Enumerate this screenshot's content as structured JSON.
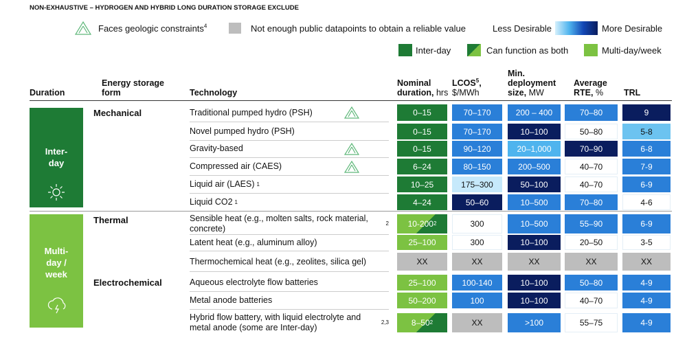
{
  "header": {
    "title": "NON-EXHAUSTIVE – HYDROGEN AND HYBRID LONG DURATION STORAGE EXCLUDE"
  },
  "legend": {
    "geologic": "Faces geologic constraints",
    "geologic_sup": "4",
    "gray": "Not enough public datapoints to obtain a reliable value",
    "less": "Less Desirable",
    "more": "More Desirable",
    "interday": "Inter-day",
    "both": "Can function as both",
    "multiday": "Multi-day/week"
  },
  "columns": [
    {
      "label": "Duration"
    },
    {
      "label": "Energy storage form"
    },
    {
      "label": "Technology"
    },
    {
      "label": "Nominal duration,",
      "unit": "hrs"
    },
    {
      "label": "LCOS",
      "sup": "5",
      "label2": ",",
      "unit": "$/MWh"
    },
    {
      "label": "Min. deployment size,",
      "unit": "MW"
    },
    {
      "label": "Average RTE,",
      "unit": "%"
    },
    {
      "label": "TRL"
    }
  ],
  "durations": [
    {
      "label": "Inter-day"
    },
    {
      "label": "Multi-day / week"
    }
  ],
  "forms": [
    {
      "label": "Mechanical"
    },
    {
      "label": "Thermal"
    },
    {
      "label": "Electrochemical"
    }
  ],
  "rows": [
    {
      "technology": "Traditional pumped hydro (PSH)",
      "geologic": true,
      "cells": [
        {
          "text": "0–15",
          "color": "#1e7b35"
        },
        {
          "text": "70–170",
          "color": "#2a7fd8"
        },
        {
          "text": "200 – 400",
          "color": "#2a7fd8"
        },
        {
          "text": "70–80",
          "color": "#2a7fd8"
        },
        {
          "text": "9",
          "color": "#0a1d5e"
        }
      ]
    },
    {
      "technology": "Novel pumped hydro (PSH)",
      "geologic": false,
      "cells": [
        {
          "text": "0–15",
          "color": "#1e7b35"
        },
        {
          "text": "70–170",
          "color": "#2a7fd8"
        },
        {
          "text": "10–100",
          "color": "#0a1d5e"
        },
        {
          "text": "50–80",
          "color": "#ffffff"
        },
        {
          "text": "5-8",
          "color": "#6cc3f0"
        }
      ]
    },
    {
      "technology": "Gravity-based",
      "geologic": true,
      "cells": [
        {
          "text": "0–15",
          "color": "#1e7b35"
        },
        {
          "text": "90–120",
          "color": "#2a7fd8"
        },
        {
          "text": "20–1,000",
          "color": "#4fb4ee"
        },
        {
          "text": "70–90",
          "color": "#0a1d5e"
        },
        {
          "text": "6-8",
          "color": "#2a7fd8"
        }
      ]
    },
    {
      "technology": "Compressed air (CAES)",
      "geologic": true,
      "cells": [
        {
          "text": "6–24",
          "color": "#1e7b35"
        },
        {
          "text": "80–150",
          "color": "#2a7fd8"
        },
        {
          "text": "200–500",
          "color": "#2a7fd8"
        },
        {
          "text": "40–70",
          "color": "#ffffff"
        },
        {
          "text": "7-9",
          "color": "#2a7fd8"
        }
      ]
    },
    {
      "technology": "Liquid air (LAES)",
      "sup": "1",
      "geologic": false,
      "cells": [
        {
          "text": "10–25",
          "color": "#1e7b35"
        },
        {
          "text": "175–300",
          "color": "#c6e9fb"
        },
        {
          "text": "50–100",
          "color": "#0a1d5e"
        },
        {
          "text": "40–70",
          "color": "#ffffff"
        },
        {
          "text": "6-9",
          "color": "#2a7fd8"
        }
      ]
    },
    {
      "technology": "Liquid CO2",
      "sup": "1",
      "geologic": false,
      "cells": [
        {
          "text": "4–24",
          "color": "#1e7b35"
        },
        {
          "text": "50–60",
          "color": "#0a1d5e"
        },
        {
          "text": "10–500",
          "color": "#2a7fd8"
        },
        {
          "text": "70–80",
          "color": "#2a7fd8"
        },
        {
          "text": "4-6",
          "color": "#ffffff"
        }
      ]
    },
    {
      "technology": "Sensible heat (e.g., molten salts, rock material, concrete)",
      "sup": "2",
      "geologic": false,
      "cells": [
        {
          "text": "10-200",
          "sup": "2",
          "color": "both"
        },
        {
          "text": "300",
          "color": "#ffffff"
        },
        {
          "text": "10–500",
          "color": "#2a7fd8"
        },
        {
          "text": "55–90",
          "color": "#2a7fd8"
        },
        {
          "text": "6-9",
          "color": "#2a7fd8"
        }
      ]
    },
    {
      "technology": "Latent heat (e.g., aluminum alloy)",
      "geologic": false,
      "cells": [
        {
          "text": "25–100",
          "color": "#7cc242"
        },
        {
          "text": "300",
          "color": "#ffffff"
        },
        {
          "text": "10–100",
          "color": "#0a1d5e"
        },
        {
          "text": "20–50",
          "color": "#ffffff"
        },
        {
          "text": "3-5",
          "color": "#ffffff"
        }
      ]
    },
    {
      "technology": "Thermochemical heat (e.g., zeolites, silica gel)",
      "geologic": false,
      "cells": [
        {
          "text": "XX",
          "color": "#bdbdbd"
        },
        {
          "text": "XX",
          "color": "#bdbdbd"
        },
        {
          "text": "XX",
          "color": "#bdbdbd"
        },
        {
          "text": "XX",
          "color": "#bdbdbd"
        },
        {
          "text": "XX",
          "color": "#bdbdbd"
        }
      ]
    },
    {
      "technology": "Aqueous electrolyte flow batteries",
      "geologic": false,
      "cells": [
        {
          "text": "25–100",
          "color": "#7cc242"
        },
        {
          "text": "100-140",
          "color": "#2a7fd8"
        },
        {
          "text": "10–100",
          "color": "#0a1d5e"
        },
        {
          "text": "50–80",
          "color": "#2a7fd8"
        },
        {
          "text": "4-9",
          "color": "#2a7fd8"
        }
      ]
    },
    {
      "technology": "Metal anode batteries",
      "geologic": false,
      "cells": [
        {
          "text": "50–200",
          "color": "#7cc242"
        },
        {
          "text": "100",
          "color": "#2a7fd8"
        },
        {
          "text": "10–100",
          "color": "#0a1d5e"
        },
        {
          "text": "40–70",
          "color": "#ffffff"
        },
        {
          "text": "4-9",
          "color": "#2a7fd8"
        }
      ]
    },
    {
      "technology": "Hybrid flow battery, with liquid electrolyte and metal anode (some are Inter-day)",
      "sup": "2,3",
      "geologic": false,
      "cells": [
        {
          "text": "8–50",
          "sup": "2",
          "color": "both"
        },
        {
          "text": "XX",
          "color": "#bdbdbd"
        },
        {
          "text": ">100",
          "color": "#2a7fd8"
        },
        {
          "text": "55–75",
          "color": "#ffffff"
        },
        {
          "text": "4-9",
          "color": "#2a7fd8"
        }
      ]
    }
  ]
}
